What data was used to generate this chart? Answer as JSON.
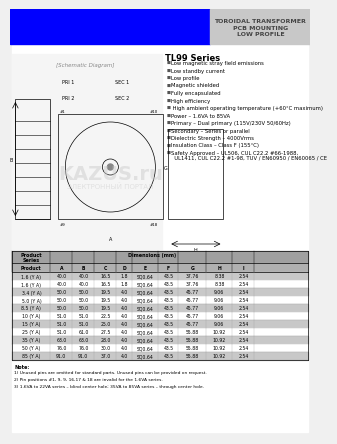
{
  "title_text": "TOROIDAL TRANSFORMER\nPCB MOUNTING\nLOW PROFILE",
  "series_title": "TL99 Series",
  "header_bg": "#0000FF",
  "header_text_bg": "#C8C8C8",
  "page_bg": "#F0F0F0",
  "features": [
    "Low magnetic stray field emissions",
    "Low standby current",
    "Low profile",
    "Magnetic shielded",
    "Fully encapsulated",
    "High efficiency",
    " High ambient operating temperature (+60°C maximum)",
    "Power – 1.6VA to 85VA",
    "Primary – Dual primary (115V/230V 50/60Hz)",
    "Secondary – Series or parallel",
    "Dielectric Strength – 4000Vrms",
    "Insulation Class – Class F (155°C)",
    "Safety Approved – UL506, CUL C22.2 #66-1988, UL1411, CUL C22.2 #1-98, TUV / EN60950 / EN60065 / CE"
  ],
  "table_headers": [
    "Product",
    "A",
    "B",
    "C",
    "D",
    "E",
    "F",
    "G",
    "H",
    "I"
  ],
  "table_subheaders": [
    "Series",
    "",
    "",
    "",
    "",
    "",
    "",
    "",
    "",
    ""
  ],
  "table_data": [
    [
      "1.6 (Y A)",
      "40.0",
      "40.0",
      "16.5",
      "1.8",
      "SQ0.64",
      "43.5",
      "37.76",
      "8.38",
      "2.54"
    ],
    [
      "1.6 (Y A)",
      "40.0",
      "40.0",
      "16.5",
      "1.8",
      "SQ0.64",
      "43.5",
      "37.76",
      "8.38",
      "2.54"
    ],
    [
      "3.4 (Y A)",
      "50.0",
      "50.0",
      "19.5",
      "4.0",
      "SQ0.64",
      "43.5",
      "45.77",
      "9.06",
      "2.54"
    ],
    [
      "5.0 (Y A)",
      "50.0",
      "50.0",
      "19.5",
      "4.0",
      "SQ0.64",
      "43.5",
      "45.77",
      "9.06",
      "2.54"
    ],
    [
      "8.5 (Y A)",
      "50.0",
      "50.0",
      "19.5",
      "4.0",
      "SQ0.64",
      "43.5",
      "45.77",
      "9.06",
      "2.54"
    ],
    [
      "10 (Y A)",
      "51.0",
      "51.0",
      "22.5",
      "4.0",
      "SQ0.64",
      "43.5",
      "45.77",
      "9.06",
      "2.54"
    ],
    [
      "15 (Y A)",
      "51.0",
      "51.0",
      "25.0",
      "4.0",
      "SQ0.64",
      "43.5",
      "45.77",
      "9.06",
      "2.54"
    ],
    [
      "25 (Y A)",
      "51.0",
      "61.0",
      "27.5",
      "4.0",
      "SQ0.64",
      "43.5",
      "55.88",
      "10.92",
      "2.54"
    ],
    [
      "35 (Y A)",
      "63.0",
      "63.0",
      "28.0",
      "4.0",
      "SQ0.64",
      "43.5",
      "55.88",
      "10.92",
      "2.54"
    ],
    [
      "50 (Y A)",
      "76.0",
      "76.0",
      "30.0",
      "4.0",
      "SQ0.64",
      "43.5",
      "55.88",
      "10.92",
      "2.54"
    ],
    [
      "85 (Y A)",
      "91.0",
      "91.0",
      "37.0",
      "4.0",
      "SQ0.64",
      "43.5",
      "55.88",
      "10.92",
      "2.54"
    ]
  ],
  "table_row_colors": [
    "#C8C8C8",
    "#FFFFFF",
    "#C8C8C8",
    "#FFFFFF",
    "#C8C8C8",
    "#FFFFFF",
    "#C8C8C8",
    "#FFFFFF",
    "#C8C8C8",
    "#FFFFFF",
    "#C8C8C8"
  ],
  "notes": [
    "1) Unused pins are omitted for standard parts. Unused pins can be provided on request.",
    "2) Pin positions #1, 9, 9, 16,17 & 18 are invalid for the 1.6VA series.",
    "3) 1.6VA to 22VA series – blind center hole; 35VA to 85VA series – through center hole."
  ],
  "dim_label": "Dimensions (mm)",
  "watermark": "KAZUS.ru\nЭЛЕКТРОННЫЙ ПОРТАЛ"
}
